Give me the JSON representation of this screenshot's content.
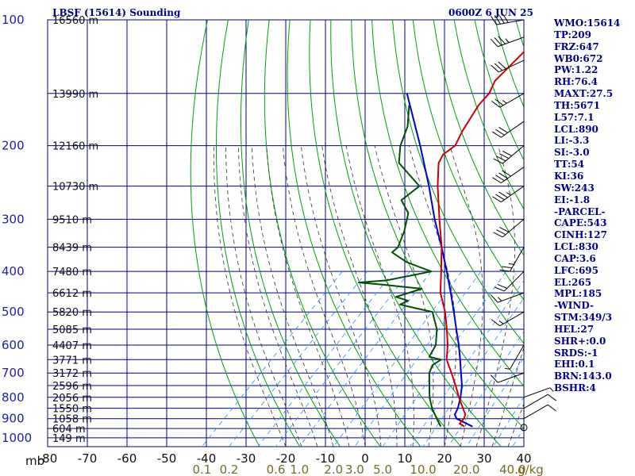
{
  "header": {
    "station": "LBSF (15614) Sounding",
    "time": "0600Z  6 JUN 25"
  },
  "indices": [
    "WMO:15614",
    "TP:209",
    "FRZ:647",
    "WB0:672",
    "PW:1.22",
    "RH:76.4",
    "MAXT:27.5",
    "TH:5671",
    "L57:7.1",
    "LCL:890",
    "LI:-3.3",
    "SI:-3.0",
    "TT:54",
    "KI:36",
    "SW:243",
    "EI:-1.8",
    "-PARCEL-",
    "CAPE:543",
    "CINH:127",
    "LCL:830",
    "CAP:3.6",
    "LFC:695",
    "EL:265",
    "MPL:185",
    "-WIND-",
    "STM:349/3",
    "HEL:27",
    "SHR+:0.0",
    "SRDS:-1",
    "EHI:0.1",
    "BRN:143.0",
    "BSHR:4"
  ],
  "colors": {
    "grid": "#00008b",
    "dry_adiabat": "#00a000",
    "moist_adiabat": "#303030",
    "mixing_ratio": "#1e90ff",
    "temperature": "#cc0000",
    "dewpoint": "#005000",
    "parcel": "#0000cc",
    "wind_barb": "#000000"
  },
  "chart_data": {
    "type": "line",
    "subtype": "skew-t log-p diagram",
    "pressure_axis_label": "mb",
    "pressure_ticks": [
      100,
      200,
      300,
      400,
      500,
      600,
      700,
      800,
      900,
      1000
    ],
    "pressure_range": [
      100,
      1050
    ],
    "pressure_scale": "log",
    "temperature_ticks": [
      -80,
      -70,
      -60,
      -50,
      -40,
      -30,
      -20,
      -10,
      0,
      10,
      20,
      30,
      40
    ],
    "temperature_tick_labels": [
      "-80",
      "-70",
      "-60",
      "-50",
      "-40",
      "-30",
      "-20",
      "-10",
      "0",
      "10",
      "20",
      "30",
      "40"
    ],
    "temperature_label_at_1050mb": [
      -80,
      40
    ],
    "mixing_ratio_ticks": [
      "0.1",
      "0.2",
      "0.6",
      "1.0",
      "2.0",
      "3.0",
      "5.0",
      "10.0",
      "20.0",
      "40.0"
    ],
    "mixing_ratio_unit": "g/kg",
    "height_labels": [
      {
        "p": 100,
        "text": "16560 m"
      },
      {
        "p": 150,
        "text": "13990 m"
      },
      {
        "p": 200,
        "text": "12160 m"
      },
      {
        "p": 250,
        "text": "10730 m"
      },
      {
        "p": 300,
        "text": "9510 m"
      },
      {
        "p": 350,
        "text": "8439 m"
      },
      {
        "p": 400,
        "text": "7480 m"
      },
      {
        "p": 450,
        "text": "6612 m"
      },
      {
        "p": 500,
        "text": "5820 m"
      },
      {
        "p": 550,
        "text": "5085 m"
      },
      {
        "p": 600,
        "text": "4407 m"
      },
      {
        "p": 650,
        "text": "3771 m"
      },
      {
        "p": 700,
        "text": "3172 m"
      },
      {
        "p": 750,
        "text": "2596 m"
      },
      {
        "p": 800,
        "text": "2056 m"
      },
      {
        "p": 850,
        "text": "1550 m"
      },
      {
        "p": 900,
        "text": "1058 m"
      },
      {
        "p": 950,
        "text": "604 m"
      },
      {
        "p": 1000,
        "text": "149 m"
      }
    ],
    "temperature_profile": [
      {
        "p": 940,
        "t": 20.0
      },
      {
        "p": 925,
        "t": 18.0
      },
      {
        "p": 900,
        "t": 17.8
      },
      {
        "p": 880,
        "t": 17.2
      },
      {
        "p": 850,
        "t": 15.0
      },
      {
        "p": 800,
        "t": 11.2
      },
      {
        "p": 750,
        "t": 7.4
      },
      {
        "p": 700,
        "t": 3.2
      },
      {
        "p": 650,
        "t": -1.4
      },
      {
        "p": 600,
        "t": -4.8
      },
      {
        "p": 550,
        "t": -9.0
      },
      {
        "p": 500,
        "t": -13.8
      },
      {
        "p": 450,
        "t": -19.8
      },
      {
        "p": 400,
        "t": -25.0
      },
      {
        "p": 350,
        "t": -31.0
      },
      {
        "p": 300,
        "t": -38.6
      },
      {
        "p": 250,
        "t": -47.4
      },
      {
        "p": 220,
        "t": -53.0
      },
      {
        "p": 210,
        "t": -54.0
      },
      {
        "p": 200,
        "t": -53.2
      },
      {
        "p": 185,
        "t": -55.0
      },
      {
        "p": 160,
        "t": -57.5
      },
      {
        "p": 150,
        "t": -57.8
      },
      {
        "p": 140,
        "t": -59.5
      },
      {
        "p": 120,
        "t": -59.5
      },
      {
        "p": 100,
        "t": -60.0
      }
    ],
    "dewpoint_profile": [
      {
        "p": 940,
        "t": 14.0
      },
      {
        "p": 900,
        "t": 11.0
      },
      {
        "p": 850,
        "t": 7.2
      },
      {
        "p": 800,
        "t": 3.8
      },
      {
        "p": 700,
        "t": -2.4
      },
      {
        "p": 670,
        "t": -3.6
      },
      {
        "p": 650,
        "t": -2.8
      },
      {
        "p": 640,
        "t": -6.5
      },
      {
        "p": 600,
        "t": -7.8
      },
      {
        "p": 550,
        "t": -11.5
      },
      {
        "p": 500,
        "t": -17.0
      },
      {
        "p": 490,
        "t": -22.0
      },
      {
        "p": 480,
        "t": -27.0
      },
      {
        "p": 470,
        "t": -26.0
      },
      {
        "p": 460,
        "t": -30.0
      },
      {
        "p": 440,
        "t": -25.5
      },
      {
        "p": 430,
        "t": -36.5
      },
      {
        "p": 425,
        "t": -43.0
      },
      {
        "p": 420,
        "t": -36.5
      },
      {
        "p": 400,
        "t": -27.5
      },
      {
        "p": 380,
        "t": -36.0
      },
      {
        "p": 360,
        "t": -42.2
      },
      {
        "p": 350,
        "t": -42.0
      },
      {
        "p": 320,
        "t": -44.5
      },
      {
        "p": 290,
        "t": -48.0
      },
      {
        "p": 270,
        "t": -53.0
      },
      {
        "p": 250,
        "t": -52.0
      },
      {
        "p": 220,
        "t": -63.0
      },
      {
        "p": 200,
        "t": -67.0
      },
      {
        "p": 180,
        "t": -70.0
      },
      {
        "p": 160,
        "t": -75.0
      }
    ],
    "parcel_profile": [
      {
        "p": 940,
        "t": 22.0
      },
      {
        "p": 900,
        "t": 16.0
      },
      {
        "p": 880,
        "t": 14.5
      },
      {
        "p": 850,
        "t": 13.7
      },
      {
        "p": 800,
        "t": 11.6
      },
      {
        "p": 750,
        "t": 9.0
      },
      {
        "p": 700,
        "t": 5.6
      },
      {
        "p": 650,
        "t": 2.0
      },
      {
        "p": 600,
        "t": -2.0
      },
      {
        "p": 550,
        "t": -6.6
      },
      {
        "p": 500,
        "t": -11.6
      },
      {
        "p": 450,
        "t": -17.2
      },
      {
        "p": 400,
        "t": -23.6
      },
      {
        "p": 350,
        "t": -31.0
      },
      {
        "p": 300,
        "t": -39.8
      },
      {
        "p": 250,
        "t": -49.6
      },
      {
        "p": 200,
        "t": -62.0
      },
      {
        "p": 150,
        "t": -78.5
      }
    ],
    "wind_barbs": [
      {
        "p": 945,
        "dir": 0,
        "speed_kt": 0
      },
      {
        "p": 900,
        "dir": 60,
        "speed_kt": 10
      },
      {
        "p": 850,
        "dir": 60,
        "speed_kt": 10
      },
      {
        "p": 800,
        "dir": 70,
        "speed_kt": 5
      },
      {
        "p": 700,
        "dir": 250,
        "speed_kt": 10
      },
      {
        "p": 600,
        "dir": 210,
        "speed_kt": 5
      },
      {
        "p": 500,
        "dir": 240,
        "speed_kt": 15
      },
      {
        "p": 450,
        "dir": 250,
        "speed_kt": 15
      },
      {
        "p": 400,
        "dir": 225,
        "speed_kt": 20
      },
      {
        "p": 350,
        "dir": 210,
        "speed_kt": 25
      },
      {
        "p": 300,
        "dir": 230,
        "speed_kt": 30
      },
      {
        "p": 250,
        "dir": 235,
        "speed_kt": 35
      },
      {
        "p": 225,
        "dir": 235,
        "speed_kt": 40
      },
      {
        "p": 200,
        "dir": 230,
        "speed_kt": 40
      },
      {
        "p": 175,
        "dir": 235,
        "speed_kt": 30
      },
      {
        "p": 150,
        "dir": 240,
        "speed_kt": 25
      },
      {
        "p": 125,
        "dir": 245,
        "speed_kt": 30
      },
      {
        "p": 110,
        "dir": 250,
        "speed_kt": 35
      },
      {
        "p": 100,
        "dir": 260,
        "speed_kt": 40
      }
    ]
  }
}
